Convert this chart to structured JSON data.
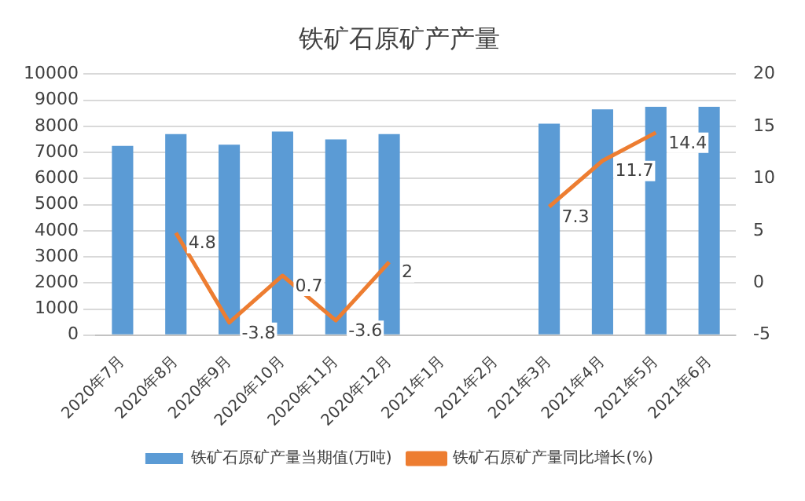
{
  "chart_data": {
    "type": "bar",
    "title": "铁矿石原矿产产量",
    "categories": [
      "2020年7月",
      "2020年8月",
      "2020年9月",
      "2020年10月",
      "2020年11月",
      "2020年12月",
      "2021年1月",
      "2021年2月",
      "2021年3月",
      "2021年4月",
      "2021年5月",
      "2021年6月"
    ],
    "series": [
      {
        "name": "铁矿石原矿产量当期值(万吨)",
        "color": "#5b9bd5",
        "values": [
          7250,
          7700,
          7300,
          7800,
          7500,
          7700,
          null,
          null,
          8100,
          8650,
          8750,
          8750
        ]
      },
      {
        "name": "铁矿石原矿产量同比增长(%)",
        "type": "line",
        "axis": "y2",
        "color": "#ed7d31",
        "values": [
          null,
          4.8,
          -3.8,
          0.7,
          -3.6,
          2,
          null,
          null,
          7.3,
          11.7,
          14.4,
          null
        ],
        "value_labels": [
          null,
          "4.8",
          "-3.8",
          "0.7",
          "-3.6",
          "2",
          null,
          null,
          "7.3",
          "11.7",
          "14.4",
          null
        ]
      }
    ],
    "ylim": [
      0,
      10000
    ],
    "yticks": [
      0,
      1000,
      2000,
      3000,
      4000,
      5000,
      6000,
      7000,
      8000,
      9000,
      10000
    ],
    "y2lim": [
      -5,
      20
    ],
    "y2ticks": [
      -5,
      0,
      5,
      10,
      15,
      20
    ],
    "grid": "y",
    "legend": "bottom",
    "marker": "none"
  }
}
